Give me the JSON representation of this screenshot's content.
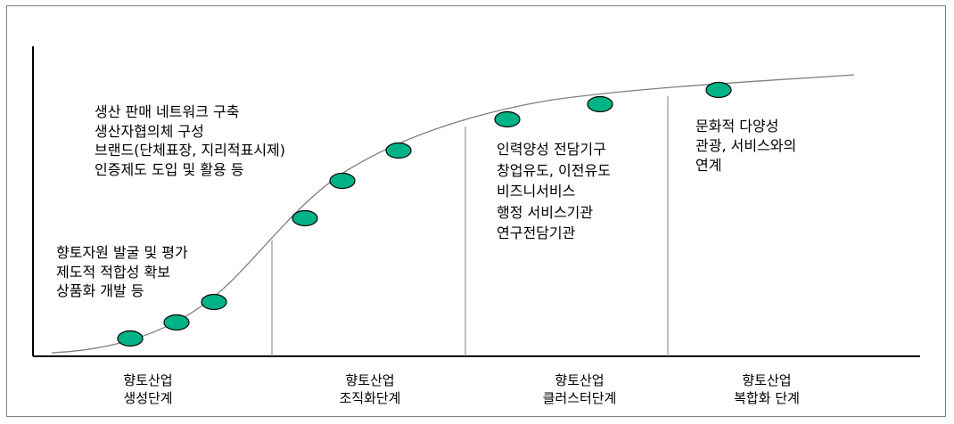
{
  "stage_texts": {
    "formation": [
      "향토자원 발굴 및 평가",
      "제도적 적합성 확보",
      "상품화 개발 등"
    ],
    "organization": [
      "생산 판매 네트워크 구축",
      "생산자협의체 구성",
      "브랜드(단체표장, 지리적표시제)",
      "인증제도 도입 및 활용 등"
    ],
    "cluster": [
      "인력양성 전담기구",
      "창업유도, 이전유도",
      "비즈니서비스",
      "행정 서비스기관",
      "연구전담기관"
    ],
    "complex": [
      "문화적 다양성",
      "관광, 서비스와의",
      "연계"
    ]
  },
  "stages": [
    {
      "line1": "향토산업",
      "line2": "생성단계"
    },
    {
      "line1": "향토산업",
      "line2": "조직화단계"
    },
    {
      "line1": "향토산업",
      "line2": "클러스터단계"
    },
    {
      "line1": "향토산업",
      "line2": "복합화 단계"
    }
  ],
  "colors": {
    "node_fill": "#00b386",
    "node_stroke": "#000000",
    "curve": "#808080",
    "axis": "#000000",
    "divider": "#808080"
  }
}
